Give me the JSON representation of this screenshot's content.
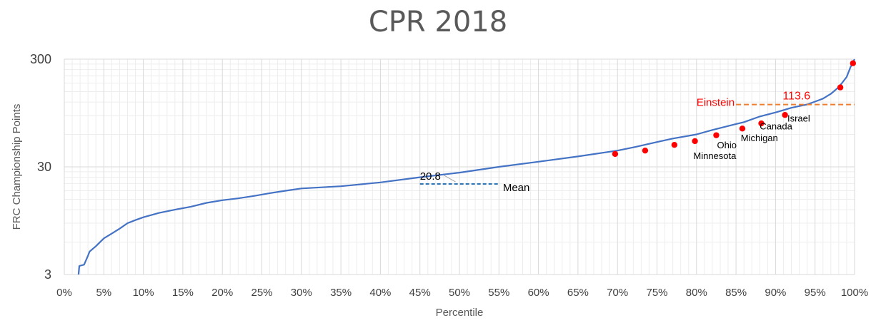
{
  "chart_data": {
    "type": "line",
    "title": "CPR 2018",
    "xlabel": "Percentile",
    "ylabel": "FRC Championship Points",
    "xlim": [
      0,
      100
    ],
    "ylim": [
      3,
      300
    ],
    "y_scale": "log",
    "grid": true,
    "x_ticks": [
      "0%",
      "5%",
      "10%",
      "15%",
      "20%",
      "25%",
      "30%",
      "35%",
      "40%",
      "45%",
      "50%",
      "55%",
      "60%",
      "65%",
      "70%",
      "75%",
      "80%",
      "85%",
      "90%",
      "95%",
      "100%"
    ],
    "y_ticks": [
      "3",
      "30",
      "300"
    ],
    "colors": {
      "line": "#4472C4",
      "markers": "#FF0000",
      "mean_line": "#2E75B6",
      "einstein_line": "#ED7D31",
      "einstein_text": "#FF0000",
      "grid": "#D9D9D9",
      "minor_grid": "#EDEDED"
    },
    "series": [
      {
        "x": [
          1.8,
          1.9,
          2.5,
          3.0,
          3.2,
          4.0,
          5.0,
          6.0,
          7.0,
          8.0,
          9.0,
          10,
          12,
          14,
          16,
          18,
          20,
          22,
          24,
          26,
          28,
          30,
          35,
          40,
          45,
          50,
          55,
          60,
          65,
          70,
          72,
          75,
          77,
          80,
          82,
          85,
          86,
          88,
          90,
          91,
          92,
          93,
          94,
          95,
          96,
          97,
          98,
          99,
          99.5,
          100
        ],
        "y": [
          3.0,
          3.6,
          3.7,
          4.5,
          4.9,
          5.5,
          6.5,
          7.2,
          8.0,
          9.0,
          9.6,
          10.2,
          11.2,
          12.0,
          12.8,
          13.9,
          14.7,
          15.3,
          16.1,
          17.1,
          18.0,
          18.9,
          19.8,
          21.5,
          24.0,
          26.5,
          30.0,
          33.5,
          37.5,
          42.5,
          45.5,
          51.0,
          55.0,
          60.0,
          66.0,
          75.0,
          78.0,
          88.0,
          96.0,
          101.0,
          106.0,
          110.0,
          114.0,
          121.0,
          129.0,
          143.0,
          165.0,
          205.0,
          255.0,
          300.0
        ]
      }
    ],
    "markers": [
      {
        "x": 69.7,
        "y": 39.5
      },
      {
        "x": 73.5,
        "y": 42.5
      },
      {
        "x": 77.2,
        "y": 48.0
      },
      {
        "x": 79.8,
        "y": 52.0
      },
      {
        "x": 82.5,
        "y": 59.0
      },
      {
        "x": 85.8,
        "y": 68.0
      },
      {
        "x": 88.2,
        "y": 76.0
      },
      {
        "x": 91.2,
        "y": 91.0
      },
      {
        "x": 98.2,
        "y": 164.0
      },
      {
        "x": 99.8,
        "y": 275.0
      }
    ],
    "annotations": {
      "mean": {
        "label": "Mean",
        "value_label": "20.8",
        "y": 20.8,
        "x_start": 45,
        "x_end": 55,
        "label_x": 55.5,
        "value_x": 45
      },
      "einstein": {
        "label": "Einstein",
        "value_label": "113.6",
        "y": 113.6,
        "x_start": 85,
        "x_end": 100
      },
      "points": [
        {
          "text": "Ohio",
          "x": 82.6,
          "y": 44.5
        },
        {
          "text": "Minnesota",
          "x": 79.6,
          "y": 35.5
        },
        {
          "text": "Michigan",
          "x": 85.6,
          "y": 52.0
        },
        {
          "text": "Canada",
          "x": 88.0,
          "y": 67.0
        },
        {
          "text": "Israel",
          "x": 91.5,
          "y": 79.0
        }
      ]
    }
  }
}
